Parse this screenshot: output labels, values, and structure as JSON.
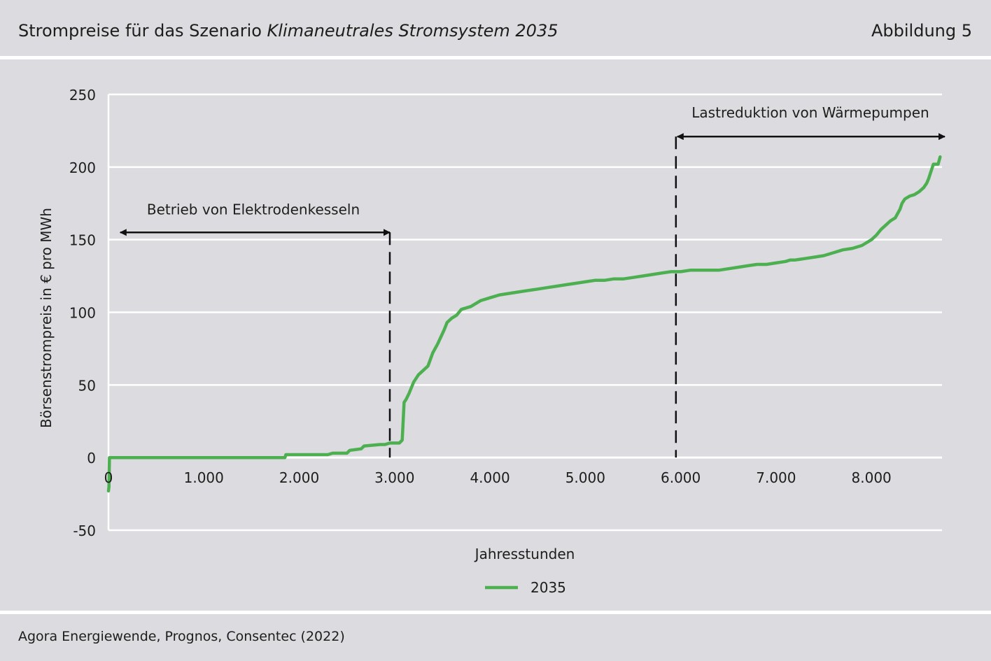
{
  "header": {
    "title_prefix": "Strompreise für das Szenario ",
    "title_italic": "Klimaneutrales Stromsystem 2035",
    "figure_label": "Abbildung 5"
  },
  "footer": {
    "source": "Agora Energiewende, Prognos, Consentec (2022)"
  },
  "colors": {
    "series": "#4caf50",
    "background": "#dcdbdf",
    "grid": "#ffffff",
    "text": "#1d1d1b"
  },
  "chart_data": {
    "type": "line",
    "title": "",
    "xlabel": "Jahresstunden",
    "ylabel": "Börsenstrompreis in € pro MWh",
    "xlim": [
      0,
      8760
    ],
    "ylim": [
      -50,
      250
    ],
    "x_ticks": [
      0,
      1000,
      2000,
      3000,
      4000,
      5000,
      6000,
      7000,
      8000
    ],
    "x_tick_labels": [
      "0",
      "1.000",
      "2.000",
      "3.000",
      "4.000",
      "5.000",
      "6.000",
      "7.000",
      "8.000"
    ],
    "y_ticks": [
      250,
      200,
      150,
      100,
      50,
      0,
      -50
    ],
    "y_tick_labels": [
      "250",
      "200",
      "150",
      "100",
      "50",
      "0",
      "-50"
    ],
    "grid": "horizontal",
    "legend": "bottom-center",
    "series": [
      {
        "name": "2035",
        "x": [
          0,
          5,
          10,
          50,
          500,
          1000,
          1500,
          1850,
          1860,
          2000,
          2300,
          2350,
          2500,
          2530,
          2650,
          2680,
          2850,
          2900,
          2950,
          3050,
          3080,
          3100,
          3120,
          3150,
          3200,
          3250,
          3300,
          3350,
          3400,
          3450,
          3500,
          3520,
          3550,
          3600,
          3650,
          3700,
          3800,
          3900,
          4000,
          4100,
          4200,
          4300,
          4400,
          4500,
          4600,
          4700,
          4800,
          4900,
          5000,
          5100,
          5200,
          5300,
          5400,
          5500,
          5600,
          5700,
          5800,
          5900,
          6000,
          6100,
          6200,
          6300,
          6400,
          6500,
          6600,
          6700,
          6800,
          6900,
          7000,
          7100,
          7150,
          7200,
          7300,
          7400,
          7500,
          7600,
          7700,
          7800,
          7900,
          8000,
          8050,
          8100,
          8150,
          8200,
          8250,
          8300,
          8320,
          8350,
          8400,
          8450,
          8500,
          8550,
          8580,
          8600,
          8620,
          8650,
          8700,
          8720
        ],
        "values": [
          -23,
          -20,
          0,
          0,
          0,
          0,
          0,
          0,
          2,
          2,
          2,
          3,
          3,
          5,
          6,
          8,
          9,
          9,
          10,
          10,
          12,
          38,
          40,
          44,
          52,
          57,
          60,
          63,
          72,
          78,
          85,
          88,
          93,
          96,
          98,
          102,
          104,
          108,
          110,
          112,
          113,
          114,
          115,
          116,
          117,
          118,
          119,
          120,
          121,
          122,
          122,
          123,
          123,
          124,
          125,
          126,
          127,
          128,
          128,
          129,
          129,
          129,
          129,
          130,
          131,
          132,
          133,
          133,
          134,
          135,
          136,
          136,
          137,
          138,
          139,
          141,
          143,
          144,
          146,
          150,
          153,
          157,
          160,
          163,
          165,
          171,
          175,
          178,
          180,
          181,
          183,
          186,
          189,
          192,
          196,
          202,
          202,
          207
        ]
      }
    ],
    "annotations": [
      {
        "text": "Betrieb von Elektrodenkesseln",
        "arrow_x": [
          50,
          2950
        ],
        "arrow_y": 155,
        "vline_x": 2950
      },
      {
        "text": "Lastreduktion von Wärmepumpen",
        "arrow_x": [
          5950,
          8760
        ],
        "arrow_y": 221,
        "vline_x": 5950
      }
    ]
  }
}
